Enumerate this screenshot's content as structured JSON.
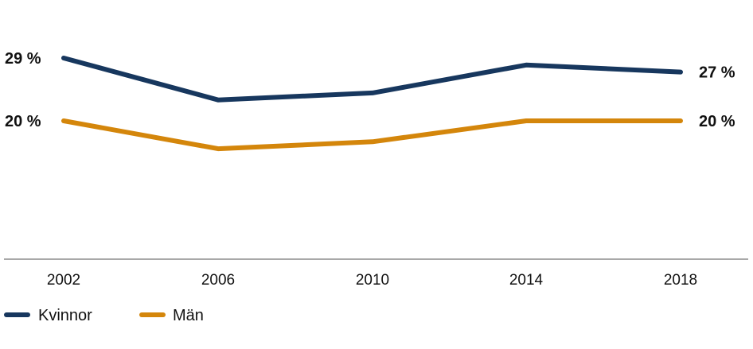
{
  "chart_data": {
    "type": "line",
    "categories": [
      "2002",
      "2006",
      "2010",
      "2014",
      "2018"
    ],
    "series": [
      {
        "name": "Kvinnor",
        "values": [
          29,
          23,
          24,
          28,
          27
        ],
        "color": "#17375e"
      },
      {
        "name": "Män",
        "values": [
          20,
          16,
          17,
          20,
          20
        ],
        "color": "#d4860b"
      }
    ],
    "start_labels": [
      "29 %",
      "20 %"
    ],
    "end_labels": [
      "27 %",
      "20 %"
    ],
    "ylim": [
      0,
      35
    ],
    "grid": false,
    "legend_position": "bottom-left"
  }
}
